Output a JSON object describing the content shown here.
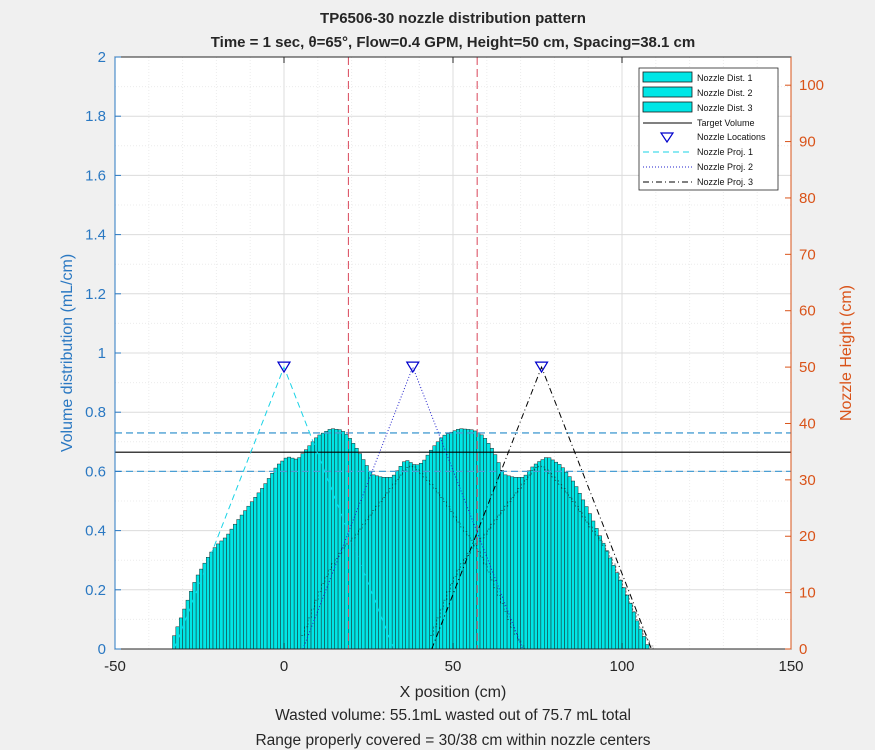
{
  "colors": {
    "bar_fill": "#00e6e6",
    "bar_edge": "#1a1a1a",
    "left_axis": "#2a78c2",
    "right_axis": "#d95319",
    "target_line": "#000000",
    "band_line": "#4a9fd4",
    "center_line": "#d9475a",
    "proj1": "#19d3e6",
    "proj2": "#2222cc",
    "proj3": "#000000",
    "marker": "#0000cc"
  },
  "chart_data": {
    "type": "bar",
    "title": "TP6506-30 nozzle distribution pattern",
    "subtitle": "Time = 1 sec, θ=65°, Flow=0.4 GPM, Height=50 cm, Spacing=38.1 cm",
    "xlabel": "X position (cm)",
    "ylabel": "Volume distribution (mL/cm)",
    "y2label": "Nozzle Height (cm)",
    "xlim": [
      -50,
      150
    ],
    "ylim": [
      0,
      2
    ],
    "y2lim": [
      0,
      105
    ],
    "x_ticks": [
      "-50",
      "0",
      "50",
      "100",
      "150"
    ],
    "x_tick_values": [
      -50,
      0,
      50,
      100,
      150
    ],
    "y_ticks": [
      "0",
      "0.2",
      "0.4",
      "0.6",
      "0.8",
      "1",
      "1.2",
      "1.4",
      "1.6",
      "1.8",
      "2"
    ],
    "y_tick_values": [
      0,
      0.2,
      0.4,
      0.6,
      0.8,
      1,
      1.2,
      1.4,
      1.6,
      1.8,
      2
    ],
    "y2_ticks": [
      "0",
      "10",
      "20",
      "30",
      "40",
      "50",
      "60",
      "70",
      "80",
      "90",
      "100"
    ],
    "y2_tick_values": [
      0,
      10,
      20,
      30,
      40,
      50,
      60,
      70,
      80,
      90,
      100
    ],
    "grid": true,
    "legend_placement": "top-right",
    "legend": [
      "Nozzle Dist. 1",
      "Nozzle Dist. 2",
      "Nozzle Dist. 3",
      "Target Volume",
      "Nozzle Locations",
      "Nozzle Proj. 1",
      "Nozzle Proj. 2",
      "Nozzle Proj. 3"
    ],
    "target_volume": 0.665,
    "band_upper": 0.73,
    "band_lower": 0.6,
    "center_lines_x": [
      19.05,
      57.15
    ],
    "nozzle_x": [
      0,
      38.1,
      76.2
    ],
    "nozzle_height": 50,
    "spray_halfwidth": 32.5,
    "bin_width": 1,
    "profile": [
      [
        -33,
        0.03
      ],
      [
        -32,
        0.06
      ],
      [
        -31,
        0.09
      ],
      [
        -30,
        0.12
      ],
      [
        -29,
        0.15
      ],
      [
        -28,
        0.18
      ],
      [
        -27,
        0.21
      ],
      [
        -26,
        0.24
      ],
      [
        -24,
        0.28
      ],
      [
        -22,
        0.32
      ],
      [
        -20,
        0.35
      ],
      [
        -17,
        0.38
      ],
      [
        -14,
        0.43
      ],
      [
        -10,
        0.49
      ],
      [
        -6,
        0.55
      ],
      [
        -2,
        0.62
      ],
      [
        1,
        0.65
      ],
      [
        4,
        0.64
      ],
      [
        7,
        0.68
      ],
      [
        10,
        0.72
      ],
      [
        14,
        0.745
      ],
      [
        17,
        0.74
      ],
      [
        19,
        0.72
      ],
      [
        22,
        0.67
      ],
      [
        26,
        0.59
      ],
      [
        29,
        0.58
      ],
      [
        32,
        0.58
      ],
      [
        34,
        0.61
      ],
      [
        36,
        0.64
      ],
      [
        39,
        0.62
      ],
      [
        41,
        0.63
      ],
      [
        44,
        0.68
      ],
      [
        47,
        0.72
      ],
      [
        52,
        0.745
      ],
      [
        56,
        0.74
      ],
      [
        59,
        0.72
      ],
      [
        62,
        0.67
      ],
      [
        65,
        0.59
      ],
      [
        68,
        0.58
      ],
      [
        71,
        0.58
      ],
      [
        73,
        0.61
      ],
      [
        75,
        0.63
      ],
      [
        78,
        0.65
      ],
      [
        82,
        0.62
      ],
      [
        86,
        0.56
      ],
      [
        90,
        0.47
      ],
      [
        94,
        0.37
      ],
      [
        98,
        0.27
      ],
      [
        102,
        0.17
      ],
      [
        105,
        0.08
      ],
      [
        107,
        0.03
      ],
      [
        108,
        0.0
      ]
    ],
    "single_profile": [
      [
        -33,
        0.03
      ],
      [
        -30,
        0.12
      ],
      [
        -27,
        0.21
      ],
      [
        -24,
        0.28
      ],
      [
        -20,
        0.35
      ],
      [
        -17,
        0.38
      ],
      [
        -14,
        0.43
      ],
      [
        -10,
        0.49
      ],
      [
        -6,
        0.55
      ],
      [
        -2,
        0.61
      ],
      [
        0,
        0.62
      ],
      [
        2,
        0.6
      ],
      [
        6,
        0.55
      ],
      [
        10,
        0.49
      ],
      [
        14,
        0.42
      ],
      [
        18,
        0.36
      ],
      [
        21,
        0.3
      ],
      [
        24,
        0.22
      ],
      [
        27,
        0.14
      ],
      [
        30,
        0.06
      ],
      [
        32,
        0.02
      ],
      [
        33,
        0.0
      ]
    ]
  },
  "captions": {
    "line1": "Wasted volume: 55.1mL wasted out of 75.7 mL total",
    "line2": "Range properly covered = 30/38 cm within nozzle centers"
  }
}
